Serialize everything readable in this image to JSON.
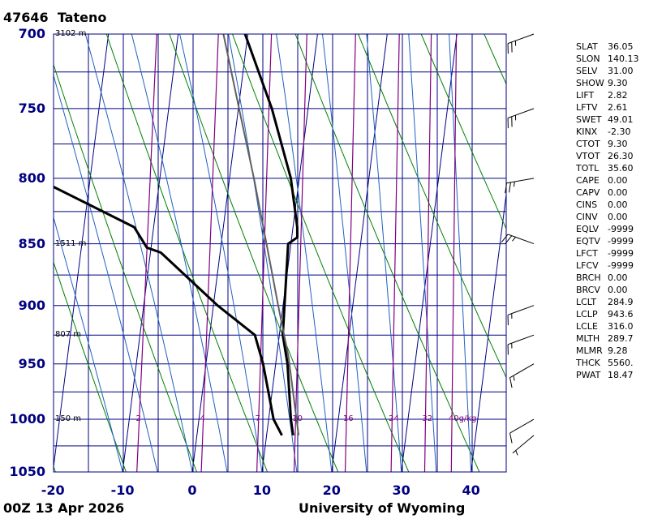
{
  "header": {
    "station": "47646",
    "name": "Tateno",
    "time": "00Z 13 Apr 2026",
    "credit": "University of Wyoming"
  },
  "colors": {
    "axis": "#000080",
    "dry_adiabat": "#008000",
    "moist_adiabat": "#2060c0",
    "mixing_ratio": "#800080",
    "sounding": "#000000",
    "parcel": "#606060"
  },
  "chart_data": {
    "type": "line",
    "title": "47646 Tateno",
    "xlabel": "",
    "ylabel": "",
    "xlim": [
      -20,
      45
    ],
    "ylim": [
      1050,
      700
    ],
    "y_scale": "log",
    "skew": "skew-T log-P",
    "grid": true,
    "pressure_ticks": [
      700,
      750,
      800,
      850,
      900,
      950,
      1000,
      1050
    ],
    "temp_ticks": [
      -20,
      -10,
      0,
      10,
      20,
      30,
      40
    ],
    "height_labels": [
      {
        "p": 700,
        "label": "3102 m"
      },
      {
        "p": 850,
        "label": "1511 m"
      },
      {
        "p": 925,
        "label": "807 m"
      },
      {
        "p": 1000,
        "label": "150 m"
      }
    ],
    "mixing_ratio_labels": [
      "2",
      "4",
      "7",
      "10",
      "16",
      "24",
      "32",
      "40g/kg"
    ],
    "mixing_ratio_values": [
      2,
      4,
      7,
      10,
      16,
      24,
      32,
      40
    ],
    "series": [
      {
        "role": "temperature",
        "p": [
          1015,
          1000,
          950,
          925,
          900,
          850,
          845,
          837,
          800,
          750,
          700
        ],
        "t": [
          13.8,
          13.2,
          11.7,
          10.5,
          10.2,
          9.6,
          10.8,
          10.6,
          8.8,
          4.8,
          -0.4
        ]
      },
      {
        "role": "dewpoint",
        "p": [
          1015,
          1000,
          950,
          925,
          900,
          857,
          853,
          837,
          794,
          727
        ],
        "t": [
          12.2,
          10.7,
          8.2,
          6.5,
          0.6,
          -8.5,
          -10.6,
          -12.8,
          -30.2,
          -42.9
        ]
      },
      {
        "role": "parcel",
        "p": [
          1015,
          943.6,
          900,
          850,
          800,
          750,
          700
        ],
        "t": [
          14.6,
          11.7,
          9.3,
          6.5,
          3.5,
          0.1,
          -3.5
        ]
      }
    ],
    "wind_barbs": [
      {
        "p": 1015,
        "dir": 230,
        "spd": 5
      },
      {
        "p": 1000,
        "dir": 240,
        "spd": 10
      },
      {
        "p": 950,
        "dir": 240,
        "spd": 15
      },
      {
        "p": 925,
        "dir": 250,
        "spd": 15
      },
      {
        "p": 900,
        "dir": 250,
        "spd": 15
      },
      {
        "p": 850,
        "dir": 290,
        "spd": 25
      },
      {
        "p": 800,
        "dir": 260,
        "spd": 25
      },
      {
        "p": 750,
        "dir": 250,
        "spd": 25
      },
      {
        "p": 700,
        "dir": 250,
        "spd": 25
      }
    ]
  },
  "indices": [
    {
      "k": "SLAT",
      "v": "36.05"
    },
    {
      "k": "SLON",
      "v": "140.13"
    },
    {
      "k": "SELV",
      "v": "31.00"
    },
    {
      "k": "SHOW",
      "v": "9.30"
    },
    {
      "k": "LIFT",
      "v": "2.82"
    },
    {
      "k": "LFTV",
      "v": "2.61"
    },
    {
      "k": "SWET",
      "v": "49.01"
    },
    {
      "k": "KINX",
      "v": "-2.30"
    },
    {
      "k": "CTOT",
      "v": "9.30"
    },
    {
      "k": "VTOT",
      "v": "26.30"
    },
    {
      "k": "TOTL",
      "v": "35.60"
    },
    {
      "k": "CAPE",
      "v": "0.00"
    },
    {
      "k": "CAPV",
      "v": "0.00"
    },
    {
      "k": "CINS",
      "v": "0.00"
    },
    {
      "k": "CINV",
      "v": "0.00"
    },
    {
      "k": "EQLV",
      "v": "-9999"
    },
    {
      "k": "EQTV",
      "v": "-9999"
    },
    {
      "k": "LFCT",
      "v": "-9999"
    },
    {
      "k": "LFCV",
      "v": "-9999"
    },
    {
      "k": "BRCH",
      "v": "0.00"
    },
    {
      "k": "BRCV",
      "v": "0.00"
    },
    {
      "k": "LCLT",
      "v": "284.9"
    },
    {
      "k": "LCLP",
      "v": "943.6"
    },
    {
      "k": "LCLE",
      "v": "316.0"
    },
    {
      "k": "MLTH",
      "v": "289.7"
    },
    {
      "k": "MLMR",
      "v": "9.28"
    },
    {
      "k": "THCK",
      "v": "5560."
    },
    {
      "k": "PWAT",
      "v": "18.47"
    }
  ]
}
